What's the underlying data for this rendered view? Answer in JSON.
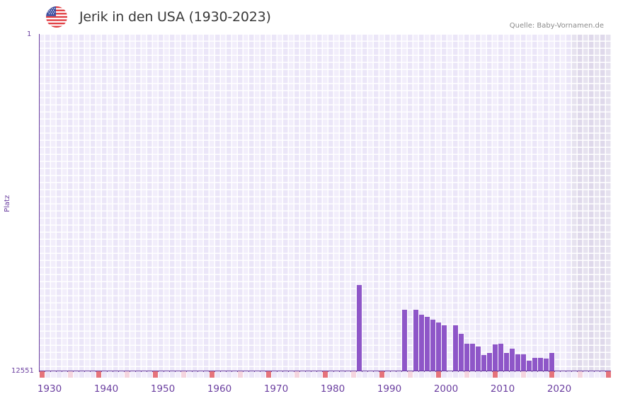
{
  "header": {
    "title": "Jerik in den USA (1930-2023)",
    "source": "Quelle: Baby-Vornamen.de",
    "flag_icon": "us-flag-icon"
  },
  "colors": {
    "bar": "#8e56c8",
    "axis": "#6b3fa0",
    "cell_a": "#f2eefb",
    "cell_b": "#ebe6f8",
    "cell_future_a": "#e6e2ef",
    "cell_future_b": "#dfd9eb",
    "marker_decade": "#e5737b",
    "marker_half": "#f5d5df",
    "marker_plain_a": "#f2eefb",
    "marker_plain_b": "#ebe6f8"
  },
  "chart_data": {
    "type": "bar",
    "title": "Jerik in den USA (1930-2023)",
    "subtitle": "Quelle: Baby-Vornamen.de",
    "xlabel": "",
    "ylabel": "Platz",
    "y_inverted": true,
    "ylim": [
      1,
      12551
    ],
    "y_ticks": [
      "1",
      "12551"
    ],
    "x_ticks": [
      "1930",
      "1940",
      "1950",
      "1960",
      "1970",
      "1980",
      "1990",
      "2000",
      "2010",
      "2020"
    ],
    "x_range": [
      1928,
      2028
    ],
    "future_shaded_from": 2022,
    "grid": true,
    "legend": null,
    "categories": [
      1984,
      1992,
      1994,
      1995,
      1996,
      1997,
      1998,
      1999,
      2001,
      2002,
      2003,
      2004,
      2005,
      2006,
      2007,
      2008,
      2009,
      2010,
      2011,
      2012,
      2013,
      2014,
      2015,
      2016,
      2017,
      2018
    ],
    "series": [
      {
        "name": "Platz",
        "values": [
          9341,
          10262,
          10262,
          10446,
          10525,
          10630,
          10736,
          10841,
          10841,
          11157,
          11525,
          11525,
          11630,
          11946,
          11867,
          11551,
          11525,
          11867,
          11709,
          11920,
          11920,
          12156,
          12051,
          12051,
          12077,
          11867
        ]
      }
    ]
  }
}
